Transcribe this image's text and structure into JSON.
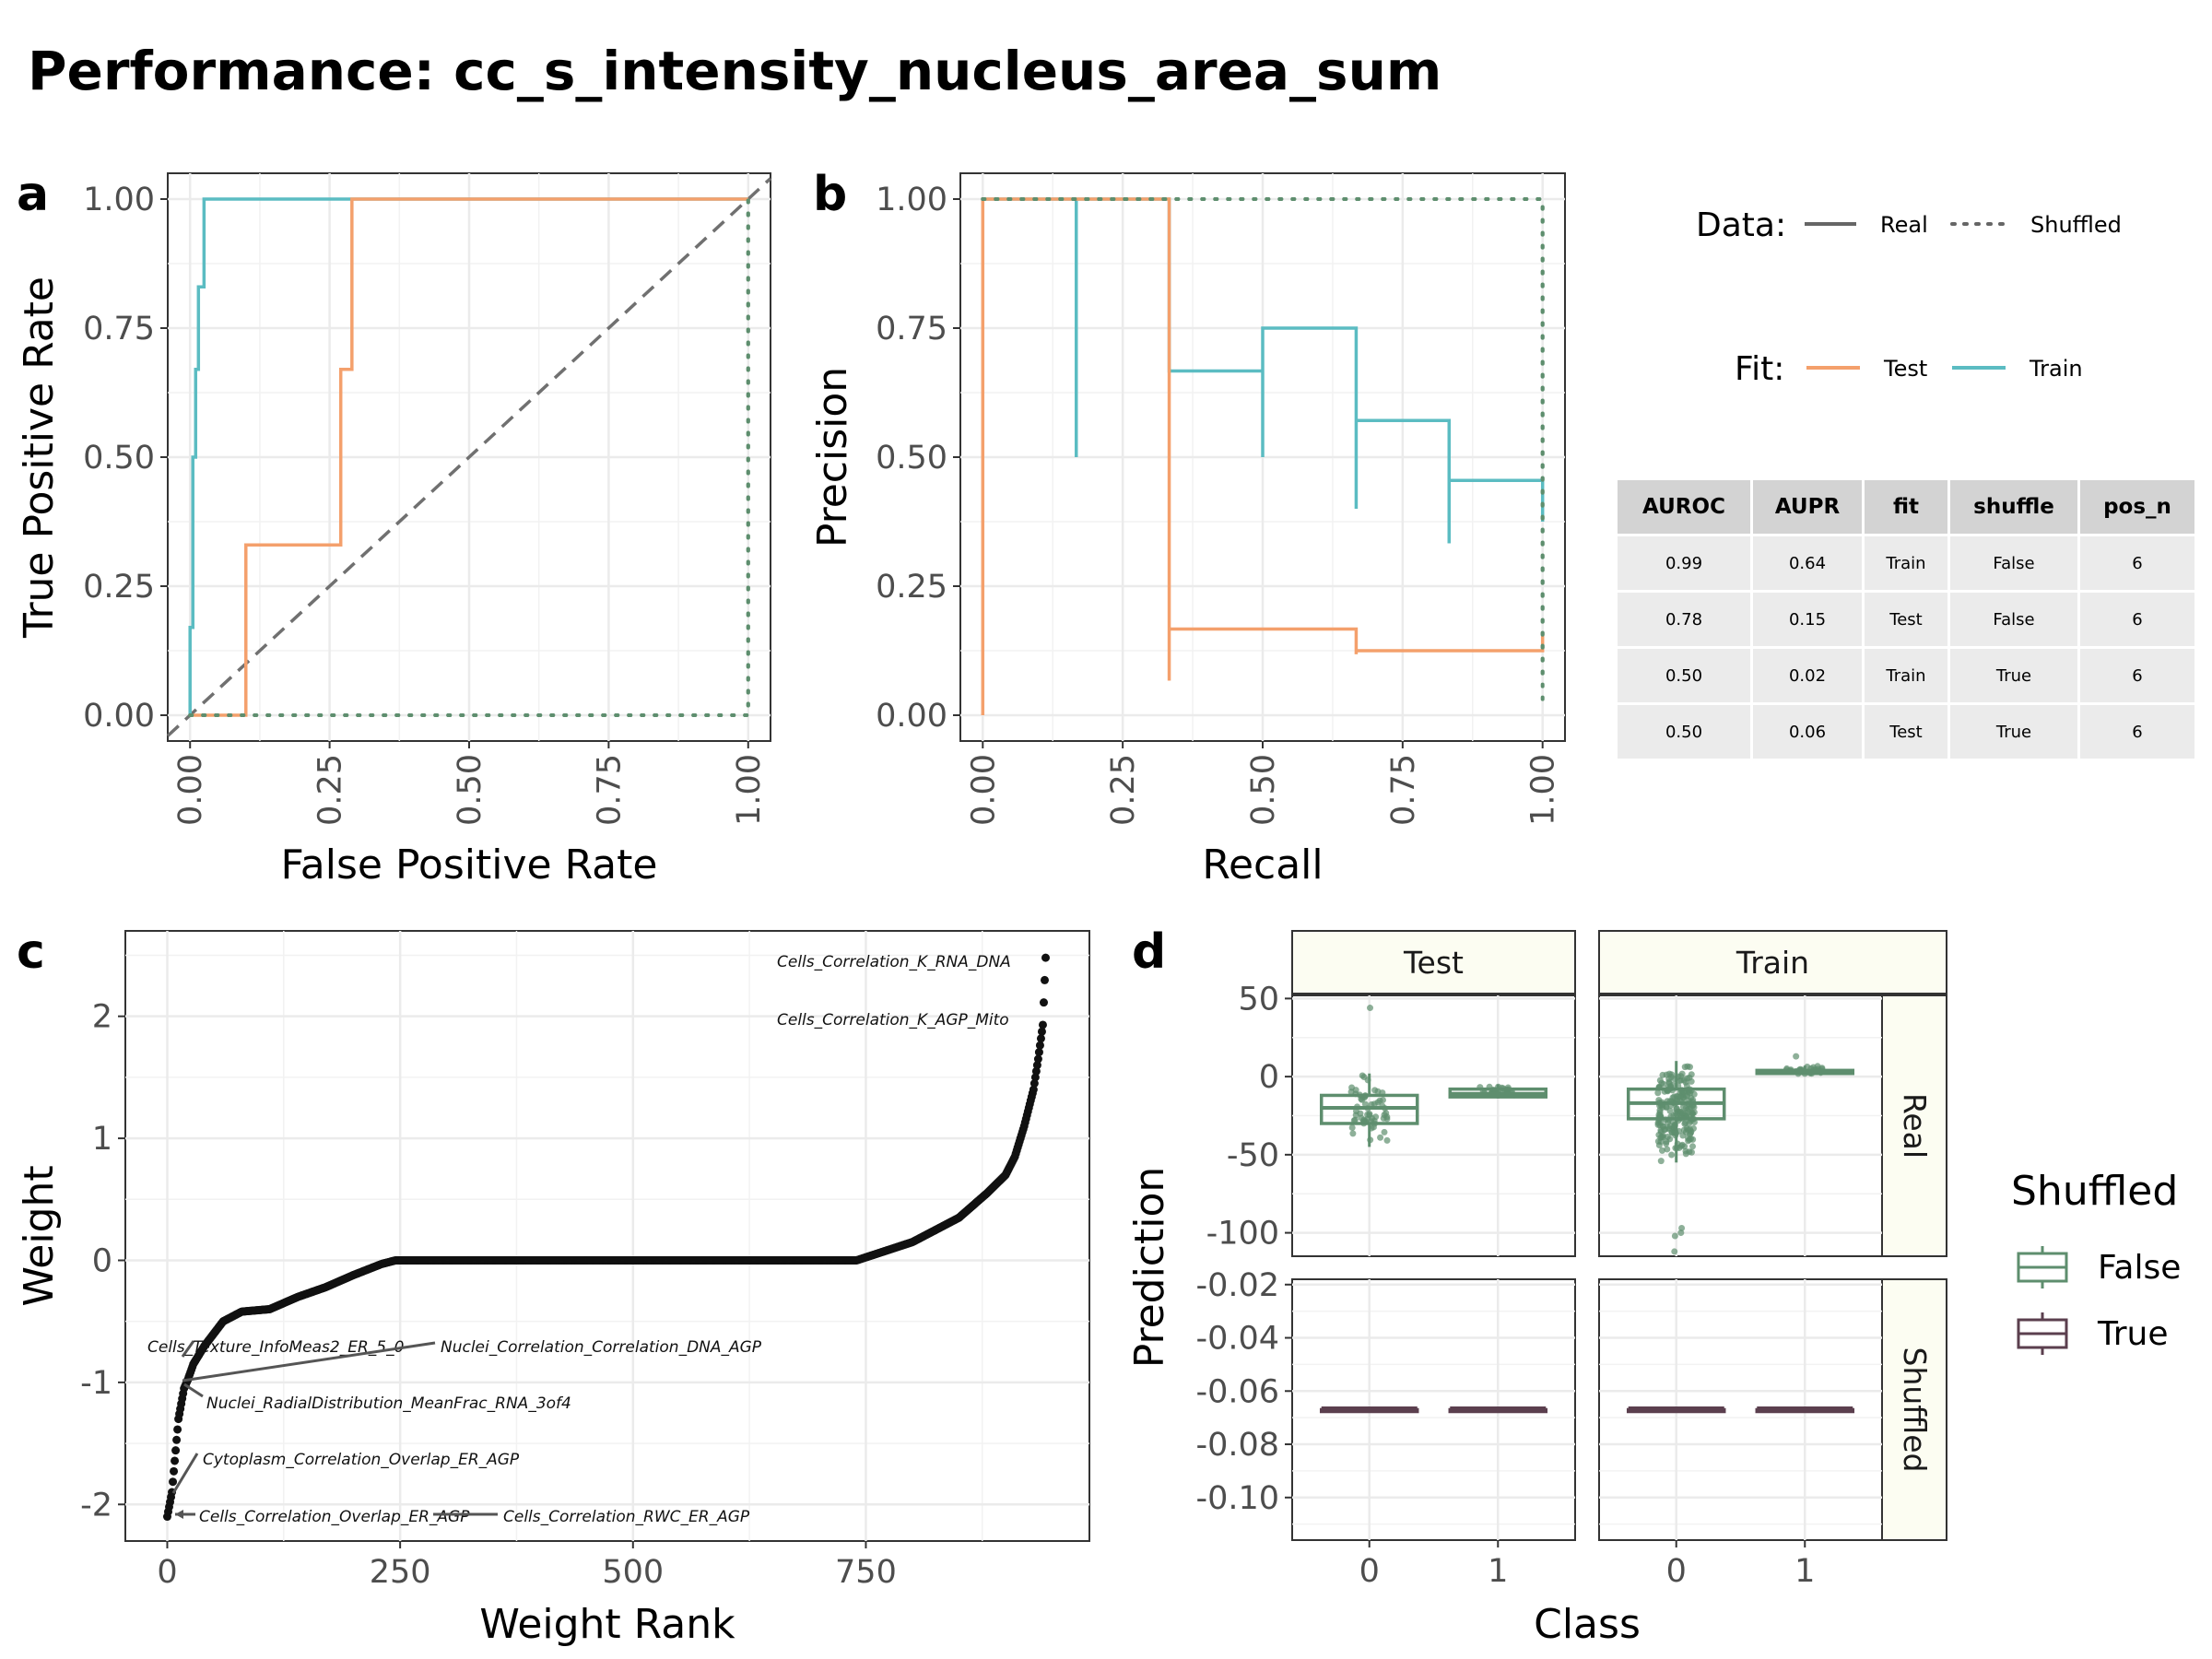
{
  "title": "Performance: cc_s_intensity_nucleus_area_sum",
  "colors": {
    "test": "#F4A06C",
    "train": "#5BBCC2",
    "shuffled": "#5E8E6E",
    "false_box": "#5E8E6E",
    "true_box": "#5B3F4E",
    "strip": "#FCFDF2",
    "panel_border": "#333333"
  },
  "legend": {
    "data_title": "Data:",
    "data_real": "Real",
    "data_shuffled": "Shuffled",
    "fit_title": "Fit:",
    "fit_test": "Test",
    "fit_train": "Train",
    "shuffled_title": "Shuffled",
    "shuffled_false": "False",
    "shuffled_true": "True"
  },
  "table": {
    "headers": [
      "AUROC",
      "AUPR",
      "fit",
      "shuffle",
      "pos_n"
    ],
    "rows": [
      [
        "0.99",
        "0.64",
        "Train",
        "False",
        "6"
      ],
      [
        "0.78",
        "0.15",
        "Test",
        "False",
        "6"
      ],
      [
        "0.50",
        "0.02",
        "Train",
        "True",
        "6"
      ],
      [
        "0.50",
        "0.06",
        "Test",
        "True",
        "6"
      ]
    ]
  },
  "chart_data": [
    {
      "panel": "a",
      "type": "line",
      "xlabel": "False Positive Rate",
      "ylabel": "True Positive Rate",
      "xlim": [
        -0.04,
        1.04
      ],
      "ylim": [
        -0.05,
        1.05
      ],
      "ticks": [
        "0.00",
        "0.25",
        "0.50",
        "0.75",
        "1.00"
      ],
      "series": [
        {
          "fit": "Train",
          "data": "Real",
          "x": [
            0,
            0,
            0.005,
            0.005,
            0.01,
            0.01,
            0.015,
            0.015,
            0.025,
            0.025,
            0.035,
            0.035,
            1
          ],
          "y": [
            0,
            0.17,
            0.17,
            0.5,
            0.5,
            0.67,
            0.67,
            0.83,
            0.83,
            1,
            1,
            1,
            1
          ]
        },
        {
          "fit": "Test",
          "data": "Real",
          "x": [
            0,
            0.1,
            0.1,
            0.27,
            0.27,
            0.29,
            0.29,
            1
          ],
          "y": [
            0,
            0,
            0.33,
            0.33,
            0.67,
            0.67,
            1,
            1
          ]
        },
        {
          "fit": "Test",
          "data": "Shuffled",
          "x": [
            0,
            1,
            1
          ],
          "y": [
            0,
            0,
            1
          ]
        },
        {
          "fit": "Train",
          "data": "Shuffled",
          "x": [
            0,
            1,
            1
          ],
          "y": [
            0,
            0,
            1
          ]
        }
      ]
    },
    {
      "panel": "b",
      "type": "line",
      "xlabel": "Recall",
      "ylabel": "Precision",
      "xlim": [
        -0.04,
        1.04
      ],
      "ylim": [
        -0.05,
        1.05
      ],
      "ticks": [
        "0.00",
        "0.25",
        "0.50",
        "0.75",
        "1.00"
      ],
      "series": [
        {
          "fit": "Train",
          "data": "Real",
          "x": [
            0,
            0.167,
            0.167,
            0.167,
            0.333,
            0.333,
            0.5,
            0.5,
            0.5,
            0.667,
            0.667,
            0.667,
            0.833,
            0.833,
            0.833,
            1,
            1
          ],
          "y": [
            1,
            1,
            0.5,
            1,
            1,
            0.667,
            0.667,
            0.5,
            0.75,
            0.75,
            0.4,
            0.571,
            0.571,
            0.333,
            0.455,
            0.455,
            0.375
          ]
        },
        {
          "fit": "Test",
          "data": "Real",
          "x": [
            0,
            0,
            0.333,
            0.333,
            0.333,
            0.667,
            0.667,
            0.667,
            1,
            1
          ],
          "y": [
            0,
            1,
            1,
            0.067,
            0.167,
            0.167,
            0.118,
            0.125,
            0.125,
            0.16
          ]
        },
        {
          "fit": "Train",
          "data": "Shuffled",
          "x": [
            0,
            1,
            1
          ],
          "y": [
            1,
            1,
            0.02
          ]
        },
        {
          "fit": "Test",
          "data": "Shuffled",
          "x": [
            0,
            1,
            1
          ],
          "y": [
            1,
            1,
            0.06
          ]
        }
      ]
    },
    {
      "panel": "c",
      "type": "scatter",
      "xlabel": "Weight Rank",
      "ylabel": "Weight",
      "xlim": [
        -45,
        990
      ],
      "ylim": [
        -2.3,
        2.7
      ],
      "xticks": [
        "0",
        "250",
        "500",
        "750"
      ],
      "yticks": [
        "-2",
        "-1",
        "0",
        "1",
        "2"
      ],
      "n_points": 944,
      "profile": {
        "rank": [
          0,
          5,
          12,
          18,
          22,
          28,
          40,
          60,
          80,
          110,
          140,
          170,
          200,
          230,
          245,
          740,
          760,
          800,
          850,
          880,
          900,
          910,
          920,
          930,
          935,
          940,
          943
        ],
        "weight": [
          -2.1,
          -1.9,
          -1.3,
          -1.05,
          -0.98,
          -0.85,
          -0.7,
          -0.5,
          -0.42,
          -0.4,
          -0.3,
          -0.22,
          -0.12,
          -0.03,
          0,
          0,
          0.05,
          0.15,
          0.35,
          0.55,
          0.7,
          0.85,
          1.1,
          1.4,
          1.65,
          1.93,
          2.48
        ]
      },
      "annotations": [
        {
          "label": "Cells_Correlation_K_RNA_DNA",
          "rank": 943,
          "weight": 2.48
        },
        {
          "label": "Cells_Correlation_K_AGP_Mito",
          "rank": 942,
          "weight": 1.93
        },
        {
          "label": "Cells_Texture_InfoMeas2_ER_5_0",
          "rank": 20,
          "weight": -1.0
        },
        {
          "label": "Nuclei_Correlation_Correlation_DNA_AGP",
          "rank": 20,
          "weight": -1.05
        },
        {
          "label": "Nuclei_RadialDistribution_MeanFrac_RNA_3of4",
          "rank": 18,
          "weight": -1.07
        },
        {
          "label": "Cytoplasm_Correlation_Overlap_ER_AGP",
          "rank": 5,
          "weight": -1.9
        },
        {
          "label": "Cells_Correlation_Overlap_ER_AGP",
          "rank": 1,
          "weight": -2.1
        },
        {
          "label": "Cells_Correlation_RWC_ER_AGP",
          "rank": 0,
          "weight": -2.1
        }
      ]
    },
    {
      "panel": "d",
      "type": "box",
      "xlabel": "Class",
      "ylabel": "Prediction",
      "columns": [
        "Test",
        "Train"
      ],
      "rows": [
        "Real",
        "Shuffled"
      ],
      "categories": [
        "0",
        "1"
      ],
      "real_ylim": [
        -115,
        52
      ],
      "real_yticks": [
        "50",
        "0",
        "-50",
        "-100"
      ],
      "shuffled_ylim": [
        -0.116,
        -0.018
      ],
      "shuffled_yticks": [
        "-0.02",
        "-0.04",
        "-0.06",
        "-0.08",
        "-0.10"
      ],
      "boxes": [
        {
          "column": "Test",
          "row": "Real",
          "class": "0",
          "q1": -30,
          "median": -20,
          "q3": -12,
          "whisker_low": -45,
          "whisker_high": 2,
          "outliers": [
            44
          ]
        },
        {
          "column": "Test",
          "row": "Real",
          "class": "1",
          "q1": -13,
          "median": -11,
          "q3": -8,
          "whisker_low": -14,
          "whisker_high": -5,
          "outliers": []
        },
        {
          "column": "Train",
          "row": "Real",
          "class": "0",
          "q1": -27,
          "median": -17,
          "q3": -8,
          "whisker_low": -55,
          "whisker_high": 10,
          "outliers": [
            -97,
            -100,
            -102,
            -112
          ]
        },
        {
          "column": "Train",
          "row": "Real",
          "class": "1",
          "q1": 2,
          "median": 3,
          "q3": 4,
          "whisker_low": 1,
          "whisker_high": 7,
          "outliers": [
            13
          ]
        },
        {
          "column": "Test",
          "row": "Shuffled",
          "class": "0",
          "q1": -0.067,
          "median": -0.067,
          "q3": -0.067,
          "whisker_low": -0.067,
          "whisker_high": -0.067,
          "outliers": []
        },
        {
          "column": "Test",
          "row": "Shuffled",
          "class": "1",
          "q1": -0.067,
          "median": -0.067,
          "q3": -0.067,
          "whisker_low": -0.067,
          "whisker_high": -0.067,
          "outliers": []
        },
        {
          "column": "Train",
          "row": "Shuffled",
          "class": "0",
          "q1": -0.067,
          "median": -0.067,
          "q3": -0.067,
          "whisker_low": -0.067,
          "whisker_high": -0.067,
          "outliers": []
        },
        {
          "column": "Train",
          "row": "Shuffled",
          "class": "1",
          "q1": -0.067,
          "median": -0.067,
          "q3": -0.067,
          "whisker_low": -0.067,
          "whisker_high": -0.067,
          "outliers": []
        }
      ]
    }
  ]
}
